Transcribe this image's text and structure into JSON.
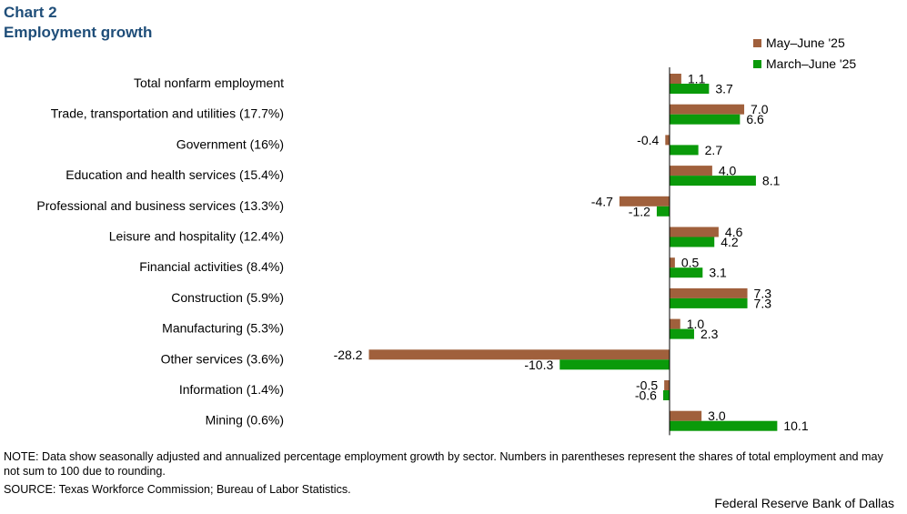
{
  "header": {
    "chart_label": "Chart 2",
    "subtitle": "Employment growth"
  },
  "footer": {
    "note": "NOTE: Data show seasonally adjusted and annualized percentage employment growth by sector. Numbers in parentheses represent the shares of total employment and may not sum to 100 due to rounding.",
    "source": "SOURCE: Texas Workforce Commission; Bureau of Labor Statistics.",
    "credit": "Federal Reserve Bank of Dallas"
  },
  "colors": {
    "series1": "#a0603c",
    "series2": "#0a9a0a",
    "title": "#1f4e79"
  },
  "chart_data": {
    "type": "bar",
    "orientation": "horizontal",
    "title": "Chart 2",
    "subtitle": "Employment growth",
    "xlabel": "",
    "ylabel": "",
    "xlim": [
      -28.2,
      10.1
    ],
    "legend_position": "top-right",
    "gridlines": false,
    "categories": [
      "Total nonfarm employment",
      "Trade, transportation and utilities (17.7%)",
      "Government (16%)",
      "Education and health services (15.4%)",
      "Professional and business services (13.3%)",
      "Leisure and hospitality (12.4%)",
      "Financial activities (8.4%)",
      "Construction (5.9%)",
      "Manufacturing (5.3%)",
      "Other services (3.6%)",
      "Information (1.4%)",
      "Mining (0.6%)"
    ],
    "series": [
      {
        "name": "May–June '25",
        "color": "#a0603c",
        "values": [
          1.1,
          7.0,
          -0.4,
          4.0,
          -4.7,
          4.6,
          0.5,
          7.3,
          1.0,
          -28.2,
          -0.5,
          3.0
        ]
      },
      {
        "name": "March–June '25",
        "color": "#0a9a0a",
        "values": [
          3.7,
          6.6,
          2.7,
          8.1,
          -1.2,
          4.2,
          3.1,
          7.3,
          2.3,
          -10.3,
          -0.6,
          10.1
        ]
      }
    ]
  }
}
